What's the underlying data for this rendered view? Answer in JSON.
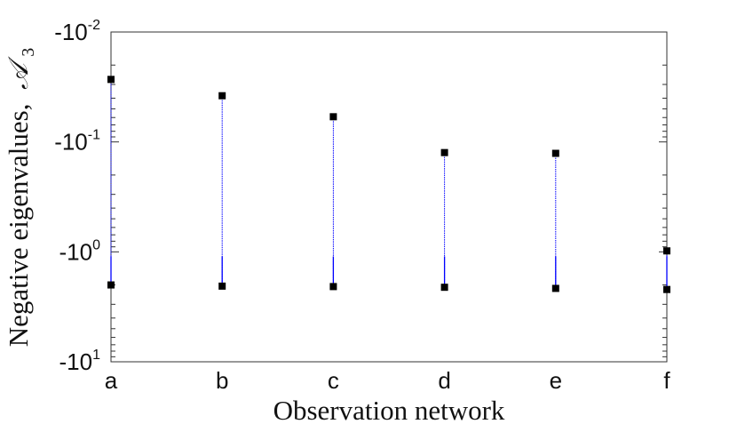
{
  "chart_data": {
    "type": "scatter",
    "xlabel": "Observation network",
    "ylabel": "Negative eigenvalues,",
    "ylabel_symbol": "𝒜",
    "ylabel_subscript": "3",
    "yscale": "log",
    "ylim": [
      -0.01,
      -10
    ],
    "categories": [
      "a",
      "b",
      "c",
      "d",
      "e",
      "f"
    ],
    "y_ticks": [
      {
        "base": "-10",
        "exp": "-2",
        "value": -0.01
      },
      {
        "base": "-10",
        "exp": "-1",
        "value": -0.1
      },
      {
        "base": "-10",
        "exp": "0",
        "value": -1
      },
      {
        "base": "-10",
        "exp": "1",
        "value": -10
      }
    ],
    "ranges": [
      {
        "category": "a",
        "max": -0.027,
        "min": -2.0
      },
      {
        "category": "b",
        "max": -0.038,
        "min": -2.05
      },
      {
        "category": "c",
        "max": -0.059,
        "min": -2.07
      },
      {
        "category": "d",
        "max": -0.125,
        "min": -2.1
      },
      {
        "category": "e",
        "max": -0.127,
        "min": -2.15
      },
      {
        "category": "f",
        "max": -0.98,
        "min": -2.2
      }
    ],
    "grid": false,
    "colors": {
      "line": "#0000ff",
      "marker": "#000000",
      "axes": "#333333"
    }
  }
}
